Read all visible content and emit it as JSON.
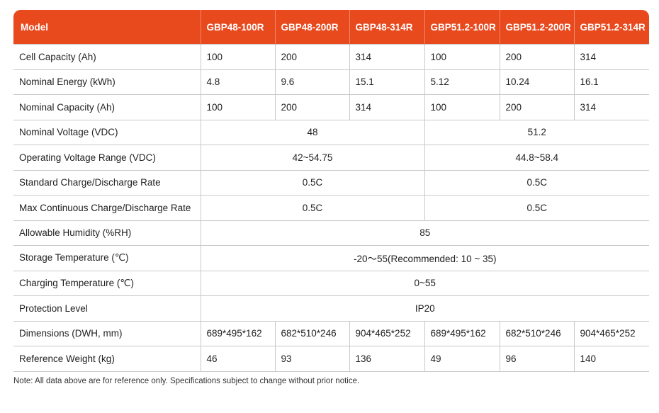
{
  "header": [
    "Model",
    "GBP48-100R",
    "GBP48-200R",
    "GBP48-314R",
    "GBP51.2-100R",
    "GBP51.2-200R",
    "GBP51.2-314R"
  ],
  "rows": {
    "cell_capacity": {
      "label": "Cell Capacity (Ah)",
      "values": [
        "100",
        "200",
        "314",
        "100",
        "200",
        "314"
      ]
    },
    "nominal_energy": {
      "label": "Nominal Energy (kWh)",
      "values": [
        "4.8",
        "9.6",
        "15.1",
        "5.12",
        "10.24",
        "16.1"
      ]
    },
    "nominal_capacity": {
      "label": "Nominal Capacity (Ah)",
      "values": [
        "100",
        "200",
        "314",
        "100",
        "200",
        "314"
      ]
    },
    "nominal_voltage": {
      "label": "Nominal Voltage (VDC)",
      "values": [
        "48",
        "51.2"
      ]
    },
    "operating_voltage": {
      "label": "Operating Voltage Range (VDC)",
      "values": [
        "42~54.75",
        "44.8~58.4"
      ]
    },
    "standard_rate": {
      "label": "Standard Charge/Discharge Rate",
      "values": [
        "0.5C",
        "0.5C"
      ]
    },
    "max_rate": {
      "label": "Max Continuous Charge/Discharge Rate",
      "values": [
        "0.5C",
        "0.5C"
      ]
    },
    "humidity": {
      "label": "Allowable Humidity (%RH)",
      "values": [
        "85"
      ]
    },
    "storage_temp": {
      "label": "Storage Temperature (℃)",
      "values": [
        "-20～55(Recommended: 10 ~ 35)"
      ]
    },
    "charging_temp": {
      "label": "Charging Temperature (℃)",
      "values": [
        "0~55"
      ]
    },
    "protection": {
      "label": "Protection Level",
      "values": [
        "IP20"
      ]
    },
    "dimensions": {
      "label": "Dimensions (DWH, mm)",
      "values": [
        "689*495*162",
        "682*510*246",
        "904*465*252",
        "689*495*162",
        "682*510*246",
        "904*465*252"
      ]
    },
    "weight": {
      "label": "Reference Weight (kg)",
      "values": [
        "46",
        "93",
        "136",
        "49",
        "96",
        "140"
      ]
    }
  },
  "note": "Note: All data above are for reference only. Specifications subject to change without prior notice.",
  "colors": {
    "header_bg": "#e8491d",
    "header_text": "#ffffff",
    "row_border": "#c8c8c8"
  }
}
